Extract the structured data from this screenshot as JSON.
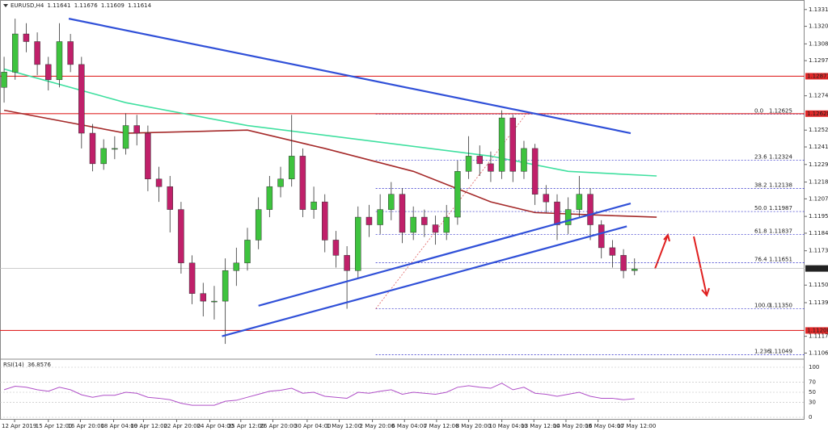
{
  "chart_data": {
    "type": "candlestick",
    "header": {
      "symbol": "EURUSD,H4",
      "ohlc": [
        1.11641,
        1.11676,
        1.11609,
        1.11614
      ]
    },
    "bull_color": "#3ec33e",
    "bear_color": "#c0206a",
    "open": [
      1.128,
      1.129,
      1.1315,
      1.131,
      1.1295,
      1.1285,
      1.131,
      1.1295,
      1.125,
      1.123,
      1.124,
      1.124,
      1.1255,
      1.125,
      1.122,
      1.1215,
      1.12,
      1.1165,
      1.1145,
      1.114,
      1.114,
      1.116,
      1.1165,
      1.118,
      1.12,
      1.1215,
      1.122,
      1.1235,
      1.12,
      1.1205,
      1.118,
      1.117,
      1.116,
      1.1195,
      1.119,
      1.12,
      1.121,
      1.1185,
      1.1195,
      1.119,
      1.1185,
      1.1195,
      1.1225,
      1.1235,
      1.123,
      1.1225,
      1.126,
      1.1225,
      1.124,
      1.121,
      1.1205,
      1.119,
      1.12,
      1.121,
      1.119,
      1.1175,
      1.117,
      1.116
    ],
    "high": [
      1.13,
      1.1325,
      1.1322,
      1.1316,
      1.13,
      1.1322,
      1.1315,
      1.13,
      1.1256,
      1.1246,
      1.1248,
      1.1263,
      1.1262,
      1.1255,
      1.1228,
      1.1222,
      1.1205,
      1.117,
      1.1152,
      1.115,
      1.1168,
      1.1175,
      1.1188,
      1.1208,
      1.1222,
      1.1228,
      1.1262,
      1.124,
      1.1215,
      1.121,
      1.1186,
      1.1176,
      1.1202,
      1.1203,
      1.121,
      1.1218,
      1.1214,
      1.1202,
      1.12,
      1.1196,
      1.1203,
      1.1232,
      1.1248,
      1.1242,
      1.1238,
      1.1265,
      1.1262,
      1.1245,
      1.1243,
      1.1216,
      1.121,
      1.1208,
      1.1222,
      1.1214,
      1.1193,
      1.118,
      1.1174,
      1.1168
    ],
    "low": [
      1.127,
      1.1285,
      1.1303,
      1.1288,
      1.1278,
      1.128,
      1.129,
      1.124,
      1.1225,
      1.1226,
      1.1233,
      1.1236,
      1.1242,
      1.1212,
      1.1205,
      1.1185,
      1.1158,
      1.1138,
      1.113,
      1.1128,
      1.1112,
      1.115,
      1.116,
      1.1174,
      1.1195,
      1.1208,
      1.1215,
      1.1195,
      1.1194,
      1.1172,
      1.1162,
      1.1135,
      1.1155,
      1.1182,
      1.1184,
      1.1193,
      1.1178,
      1.118,
      1.1182,
      1.1177,
      1.118,
      1.119,
      1.122,
      1.1222,
      1.1218,
      1.122,
      1.1218,
      1.122,
      1.1203,
      1.1198,
      1.118,
      1.1184,
      1.1195,
      1.118,
      1.1168,
      1.1162,
      1.1155,
      1.1157
    ],
    "close": [
      1.129,
      1.1315,
      1.131,
      1.1295,
      1.1285,
      1.131,
      1.1295,
      1.125,
      1.123,
      1.124,
      1.124,
      1.1255,
      1.125,
      1.122,
      1.1215,
      1.12,
      1.1165,
      1.1145,
      1.114,
      1.114,
      1.116,
      1.1165,
      1.118,
      1.12,
      1.1215,
      1.122,
      1.1235,
      1.12,
      1.1205,
      1.118,
      1.117,
      1.116,
      1.1195,
      1.119,
      1.12,
      1.121,
      1.1185,
      1.1195,
      1.119,
      1.1185,
      1.1195,
      1.1225,
      1.1235,
      1.123,
      1.1225,
      1.126,
      1.1225,
      1.124,
      1.121,
      1.1205,
      1.119,
      1.12,
      1.121,
      1.119,
      1.1175,
      1.117,
      1.116,
      1.1161
    ],
    "ylim": [
      1.1102,
      1.1333
    ],
    "yticks": [
      {
        "value": 1.1331,
        "label": "1.13310"
      },
      {
        "value": 1.132,
        "label": "1.13200"
      },
      {
        "value": 1.13085,
        "label": "1.13085"
      },
      {
        "value": 1.12975,
        "label": "1.12975"
      },
      {
        "value": 1.12745,
        "label": "1.12745"
      },
      {
        "value": 1.1252,
        "label": "1.12520"
      },
      {
        "value": 1.1241,
        "label": "1.12410"
      },
      {
        "value": 1.12295,
        "label": "1.12295"
      },
      {
        "value": 1.1218,
        "label": "1.12180"
      },
      {
        "value": 1.1207,
        "label": "1.12070"
      },
      {
        "value": 1.11955,
        "label": "1.11955"
      },
      {
        "value": 1.11845,
        "label": "1.11845"
      },
      {
        "value": 1.1173,
        "label": "1.11730"
      },
      {
        "value": 1.11505,
        "label": "1.11505"
      },
      {
        "value": 1.1139,
        "label": "1.11390"
      },
      {
        "value": 1.1117,
        "label": "1.11170"
      },
      {
        "value": 1.1106,
        "label": "1.11060"
      }
    ],
    "xlim": [
      -0.37,
      72.37
    ],
    "xticks": [
      {
        "value": 0.95,
        "label": "12 Apr 2019"
      },
      {
        "value": 4.0,
        "label": "15 Apr 12:00"
      },
      {
        "value": 6.9,
        "label": "16 Apr 20:00"
      },
      {
        "value": 9.9,
        "label": "18 Apr 04:00"
      },
      {
        "value": 12.6,
        "label": "19 Apr 12:00"
      },
      {
        "value": 15.6,
        "label": "22 Apr 20:00"
      },
      {
        "value": 18.6,
        "label": "24 Apr 04:00"
      },
      {
        "value": 21.4,
        "label": "25 Apr 12:00"
      },
      {
        "value": 24.3,
        "label": "26 Apr 20:00"
      },
      {
        "value": 27.4,
        "label": "30 Apr 04:00"
      },
      {
        "value": 30.3,
        "label": "1 May 12:00"
      },
      {
        "value": 33.3,
        "label": "2 May 20:00"
      },
      {
        "value": 36.2,
        "label": "6 May 04:00"
      },
      {
        "value": 39.1,
        "label": "7 May 12:00"
      },
      {
        "value": 42.0,
        "label": "8 May 20:00"
      },
      {
        "value": 45.0,
        "label": "10 May 04:00"
      },
      {
        "value": 47.9,
        "label": "13 May 12:00"
      },
      {
        "value": 50.8,
        "label": "14 May 20:00"
      },
      {
        "value": 53.7,
        "label": "16 May 04:00"
      },
      {
        "value": 56.6,
        "label": "17 May 12:00"
      }
    ],
    "ma_lines": [
      {
        "color": "#40e0a0",
        "x": [
          0,
          11,
          22,
          33,
          44,
          51,
          59
        ],
        "values": [
          1.1292,
          1.127,
          1.1255,
          1.1245,
          1.1235,
          1.1225,
          1.1222
        ]
      },
      {
        "color": "#a52a2a",
        "x": [
          0,
          11,
          22,
          29,
          37,
          44,
          48,
          55,
          59
        ],
        "values": [
          1.1265,
          1.125,
          1.1252,
          1.124,
          1.1225,
          1.1205,
          1.1198,
          1.1196,
          1.1195
        ]
      }
    ],
    "trendlines": [
      {
        "color": "#3050d8",
        "x": [
          5.85,
          56.65
        ],
        "values": [
          1.1325,
          1.125
        ]
      },
      {
        "color": "#3050d8",
        "x": [
          19.7,
          56.3
        ],
        "values": [
          1.1117,
          1.1189
        ]
      },
      {
        "color": "#3050d8",
        "x": [
          23.0,
          56.65
        ],
        "values": [
          1.1137,
          1.1204
        ]
      }
    ],
    "levels": [
      {
        "value": 1.12873,
        "color": "#e02828"
      },
      {
        "value": 1.12628,
        "color": "#e02828"
      },
      {
        "value": 1.11208,
        "color": "#e02828"
      }
    ],
    "current_price": 1.11614,
    "fib": {
      "x": [
        33.6,
        47.2
      ],
      "color": "#2828c8",
      "levels": [
        {
          "ratio": "0.0",
          "value": 1.12625
        },
        {
          "ratio": "23.6",
          "value": 1.12324
        },
        {
          "ratio": "38.2",
          "value": 1.12138
        },
        {
          "ratio": "50.0",
          "value": 1.11987
        },
        {
          "ratio": "61.8",
          "value": 1.11837
        },
        {
          "ratio": "76.4",
          "value": 1.11651
        },
        {
          "ratio": "100.0",
          "value": 1.1135,
          "label": "1.11350"
        },
        {
          "ratio": "1.236",
          "value": 1.11049
        }
      ]
    },
    "rsi": {
      "label": "RSI(14)",
      "value": 36.8576,
      "color": "#b050c8",
      "ylim": [
        0,
        100
      ],
      "yticks": [
        100,
        70,
        50,
        30,
        0
      ],
      "values": [
        55,
        62,
        60,
        55,
        52,
        60,
        55,
        45,
        40,
        44,
        44,
        50,
        48,
        40,
        38,
        35,
        28,
        24,
        24,
        24,
        32,
        34,
        40,
        46,
        52,
        54,
        58,
        48,
        50,
        42,
        40,
        38,
        50,
        48,
        52,
        55,
        46,
        50,
        48,
        46,
        50,
        60,
        63,
        60,
        58,
        68,
        55,
        60,
        48,
        46,
        42,
        46,
        50,
        42,
        38,
        38,
        35,
        37
      ]
    }
  }
}
